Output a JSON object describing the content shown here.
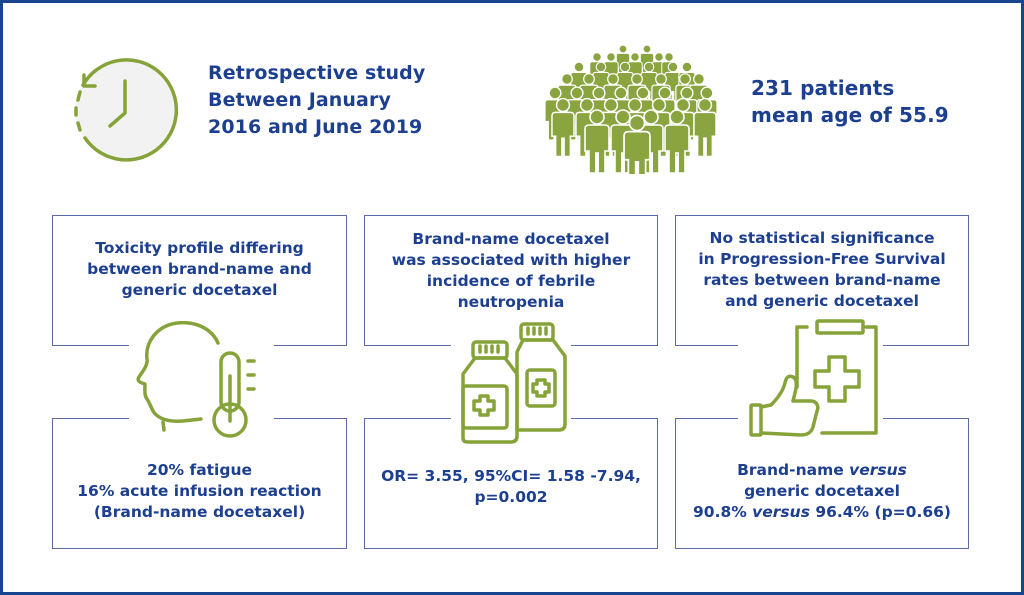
{
  "header": {
    "study": {
      "icon": "clock-rewind-icon",
      "lines": [
        "Retrospective study",
        "Between January",
        "2016 and June 2019"
      ]
    },
    "population": {
      "icon": "crowd-icon",
      "lines": [
        "231 patients",
        "mean age of 55.9"
      ]
    }
  },
  "panels": [
    {
      "icon": "head-thermometer-icon",
      "top_lines": [
        "Toxicity profile differing",
        "between brand-name and",
        "generic docetaxel"
      ],
      "bottom_lines": [
        "20% fatigue",
        "16% acute infusion reaction",
        "(Brand-name docetaxel)"
      ]
    },
    {
      "icon": "medicine-bottles-icon",
      "top_lines": [
        "Brand-name docetaxel",
        "was associated with higher",
        "incidence of febrile",
        "neutropenia"
      ],
      "bottom_lines": [
        "OR= 3.55, 95%CI= 1.58 -7.94,",
        "p=0.002"
      ]
    },
    {
      "icon": "clipboard-thumbs-up-icon",
      "top_lines": [
        "No statistical significance",
        "in Progression-Free Survival",
        "rates between brand-name",
        "and generic docetaxel"
      ],
      "bottom": {
        "line1_a": "Brand-name ",
        "line1_b": "versus",
        "line2": "generic docetaxel",
        "line3_a": "90.8% ",
        "line3_b": "versus",
        "line3_c": " 96.4% (p=0.66)"
      }
    }
  ],
  "colors": {
    "text_blue": "#1d3f8f",
    "icon_green": "#86a33a",
    "crowd_green": "#8aa53f",
    "box_border": "#5b6aa8",
    "frame_border": "#17458f"
  }
}
